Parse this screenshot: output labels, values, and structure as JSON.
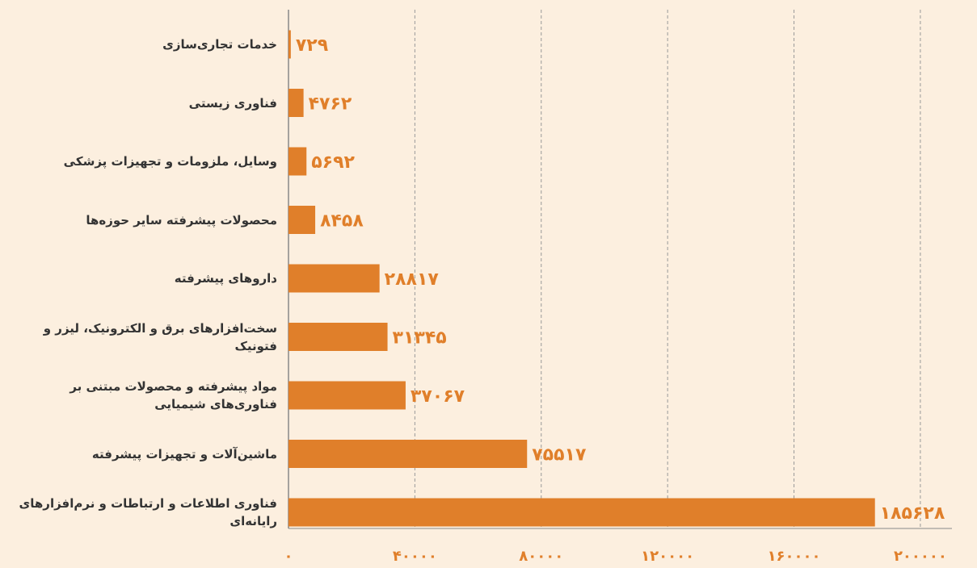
{
  "chart_data": {
    "type": "barh",
    "categories": [
      "خدمات تجاری‌سازی",
      "فناوری زیستی",
      "وسایل، ملزومات و تجهیزات پزشکی",
      "محصولات پیشرفته سایر حوزه‌ها",
      "داروهای پیشرفته",
      "سخت‌افزارهای برق و الکترونیک، لیزر و فتونیک",
      "مواد پیشرفته و محصولات مبتنی بر فناوری‌های شیمیایی",
      "ماشین‌آلات و تجهیزات پیشرفته",
      "فناوری اطلاعات و ارتباطات و نرم‌افزارهای رایانه‌ای"
    ],
    "values": [
      729,
      4762,
      5692,
      8458,
      28817,
      31345,
      37067,
      75517,
      185628
    ],
    "value_labels": [
      "۷۲۹",
      "۴۷۶۲",
      "۵۶۹۲",
      "۸۴۵۸",
      "۲۸۸۱۷",
      "۳۱۳۴۵",
      "۳۷۰۶۷",
      "۷۵۵۱۷",
      "۱۸۵۶۲۸"
    ],
    "color": "#e07f2a",
    "xlim": [
      0,
      210000
    ],
    "xticks": [
      {
        "value": 0,
        "label": "۰"
      },
      {
        "value": 40000,
        "label": "۴۰۰۰۰"
      },
      {
        "value": 80000,
        "label": "۸۰۰۰۰"
      },
      {
        "value": 120000,
        "label": "۱۲۰۰۰۰"
      },
      {
        "value": 160000,
        "label": "۱۶۰۰۰۰"
      },
      {
        "value": 200000,
        "label": "۲۰۰۰۰۰"
      }
    ],
    "grid": true
  }
}
